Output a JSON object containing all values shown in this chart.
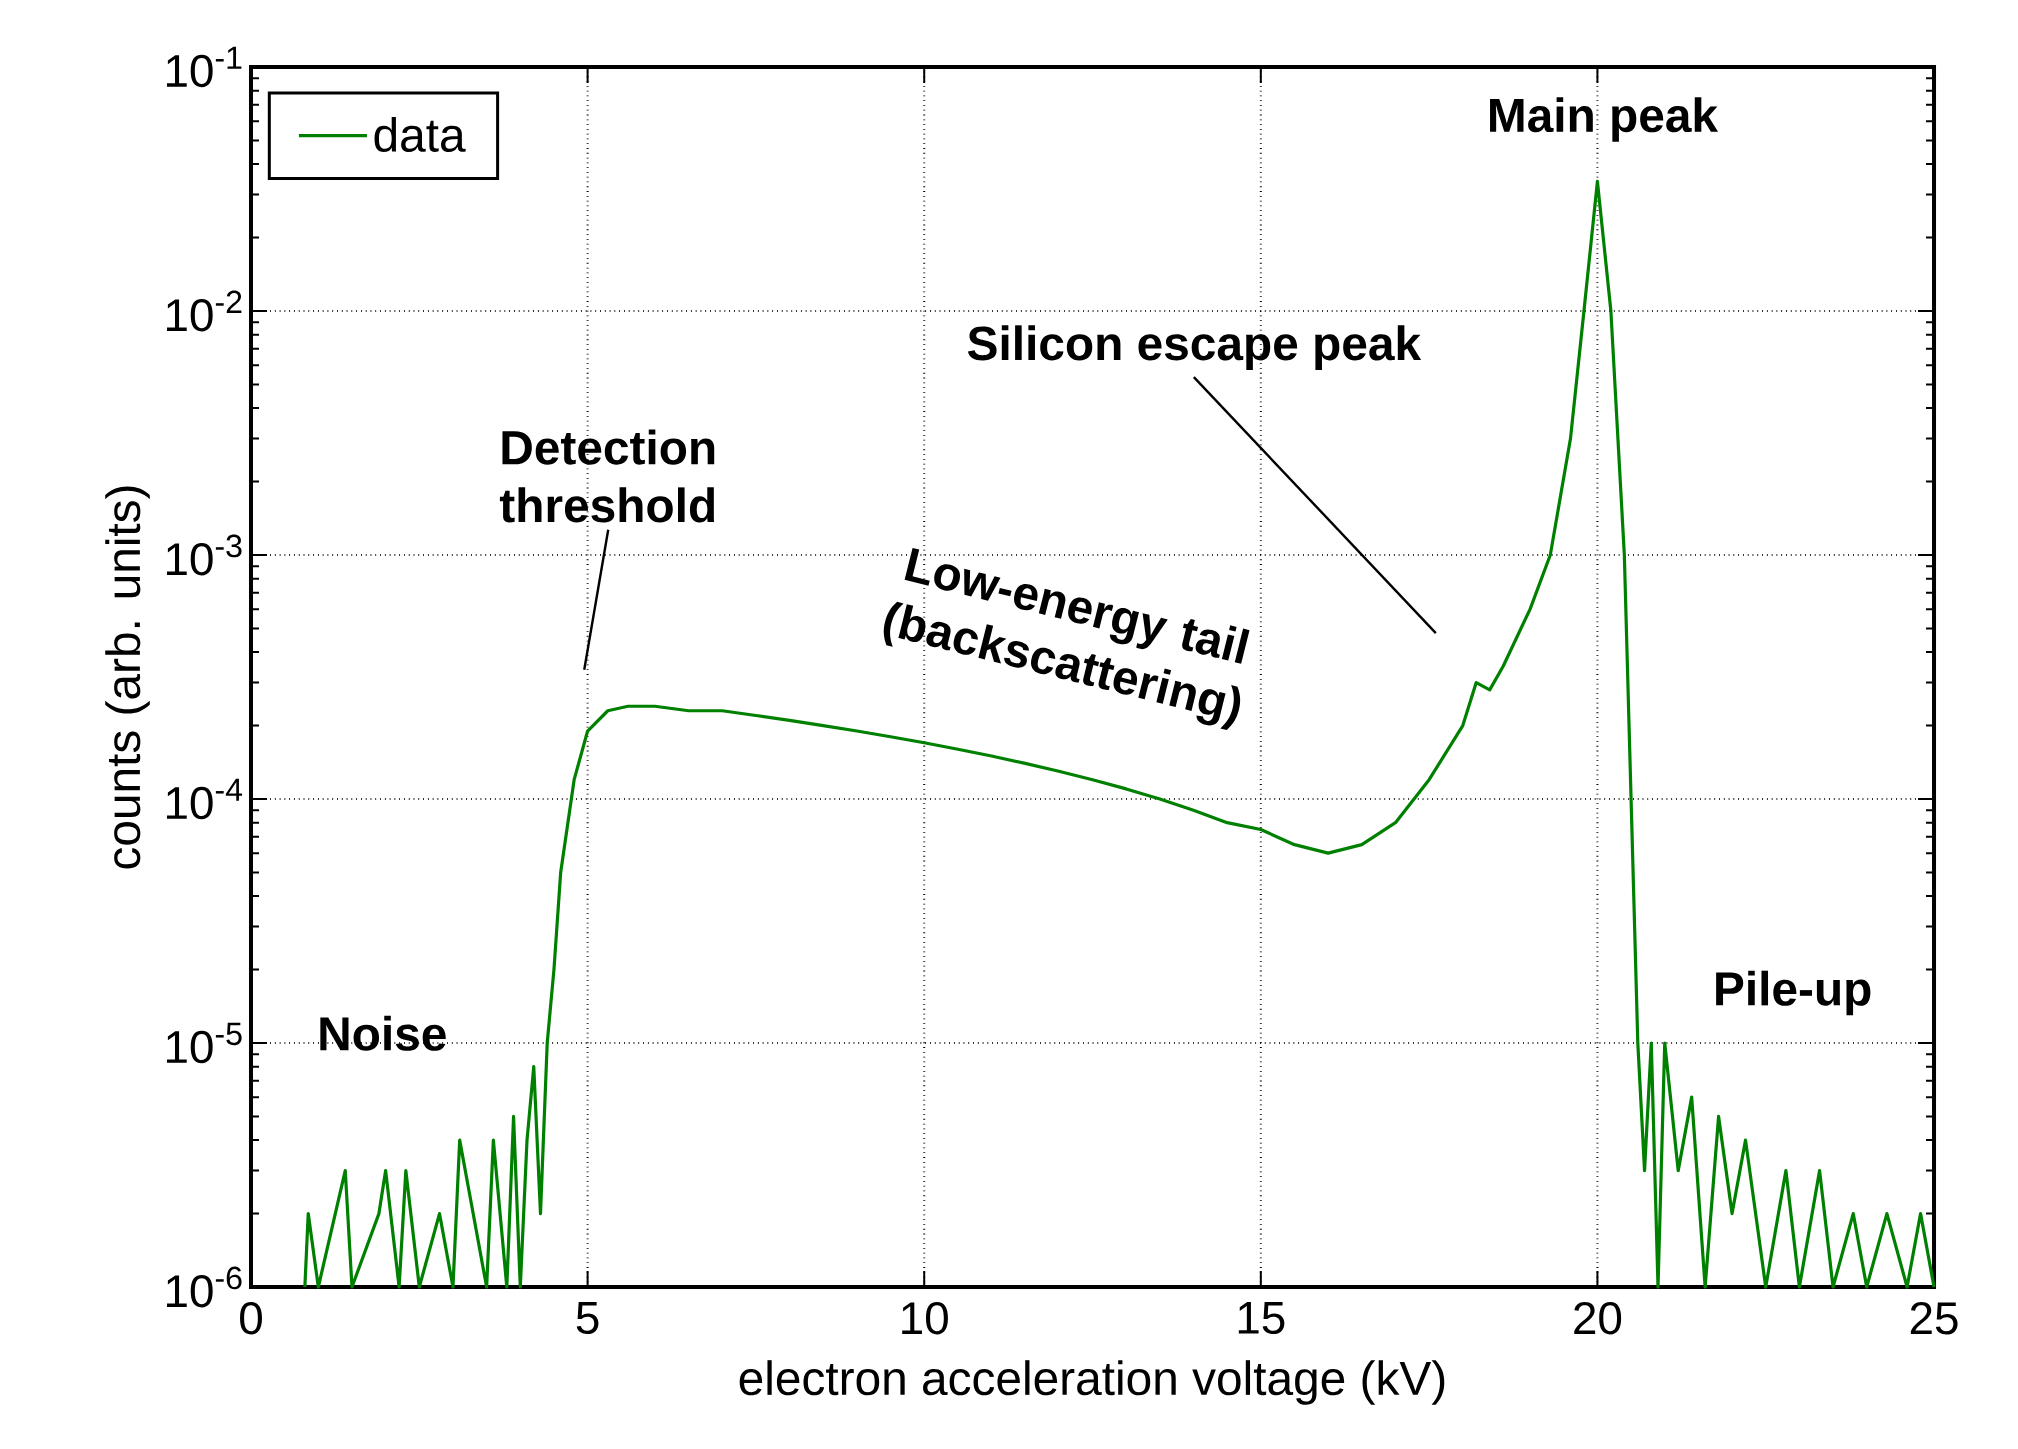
{
  "chart_data": {
    "type": "line",
    "xlabel": "electron acceleration voltage (kV)",
    "ylabel": "counts (arb. units)",
    "xlim": [
      0,
      25
    ],
    "ylim": [
      1e-06,
      0.1
    ],
    "xticks": [
      0,
      5,
      10,
      15,
      20,
      25
    ],
    "yticks": [
      {
        "value": 1e-06,
        "label": "10$^{-6}$"
      },
      {
        "value": 1e-05,
        "label": "10$^{-5}$"
      },
      {
        "value": 0.0001,
        "label": "10$^{-4}$"
      },
      {
        "value": 0.001,
        "label": "10$^{-3}$"
      },
      {
        "value": 0.01,
        "label": "10$^{-2}$"
      },
      {
        "value": 0.1,
        "label": "10$^{-1}$"
      }
    ],
    "log": "y",
    "grid": true,
    "legend": "top left",
    "marker": "none",
    "line_style": "solid",
    "series": [
      {
        "name": "data",
        "color": "#008000",
        "x": [
          0.8,
          0.85,
          1.0,
          1.4,
          1.5,
          1.9,
          2.0,
          2.2,
          2.3,
          2.5,
          2.8,
          3.0,
          3.1,
          3.3,
          3.5,
          3.6,
          3.8,
          3.9,
          4.0,
          4.1,
          4.2,
          4.3,
          4.4,
          4.5,
          4.6,
          4.8,
          5.0,
          5.3,
          5.6,
          6.0,
          6.5,
          7.0,
          7.5,
          8.0,
          8.5,
          9.0,
          9.5,
          10.0,
          10.5,
          11.0,
          11.5,
          12.0,
          12.5,
          13.0,
          13.5,
          14.0,
          14.5,
          15.0,
          15.5,
          16.0,
          16.5,
          17.0,
          17.5,
          18.0,
          18.2,
          18.4,
          18.6,
          19.0,
          19.3,
          19.6,
          19.8,
          20.0,
          20.2,
          20.4,
          20.5,
          20.6,
          20.7,
          20.8,
          20.9,
          21.0,
          21.2,
          21.4,
          21.6,
          21.8,
          22.0,
          22.2,
          22.5,
          22.8,
          23.0,
          23.3,
          23.5,
          23.8,
          24.0,
          24.3,
          24.6,
          24.8,
          25.0
        ],
        "values": [
          1e-06,
          2e-06,
          1e-06,
          3e-06,
          1e-06,
          2e-06,
          3e-06,
          1e-06,
          3e-06,
          1e-06,
          2e-06,
          1e-06,
          4e-06,
          2e-06,
          1e-06,
          4e-06,
          1e-06,
          5e-06,
          1e-06,
          4e-06,
          8e-06,
          2e-06,
          1e-05,
          2e-05,
          5e-05,
          0.00012,
          0.00019,
          0.00023,
          0.00024,
          0.00024,
          0.00023,
          0.00023,
          0.00022,
          0.00021,
          0.0002,
          0.00019,
          0.00018,
          0.00017,
          0.00016,
          0.00015,
          0.00014,
          0.00013,
          0.00012,
          0.00011,
          0.0001,
          9e-05,
          8e-05,
          7.5e-05,
          6.5e-05,
          6e-05,
          6.5e-05,
          8e-05,
          0.00012,
          0.0002,
          0.0003,
          0.00028,
          0.00035,
          0.0006,
          0.001,
          0.003,
          0.01,
          0.034,
          0.01,
          0.001,
          0.0001,
          1e-05,
          3e-06,
          1e-05,
          1e-06,
          1e-05,
          3e-06,
          6e-06,
          1e-06,
          5e-06,
          2e-06,
          4e-06,
          1e-06,
          3e-06,
          1e-06,
          3e-06,
          1e-06,
          2e-06,
          1e-06,
          2e-06,
          1e-06,
          2e-06,
          1e-06
        ]
      }
    ],
    "annotations": [
      "Noise",
      "Detection threshold",
      "Silicon escape peak",
      "Low-energy tail (backscattering)",
      "Main peak",
      "Pile-up"
    ]
  }
}
